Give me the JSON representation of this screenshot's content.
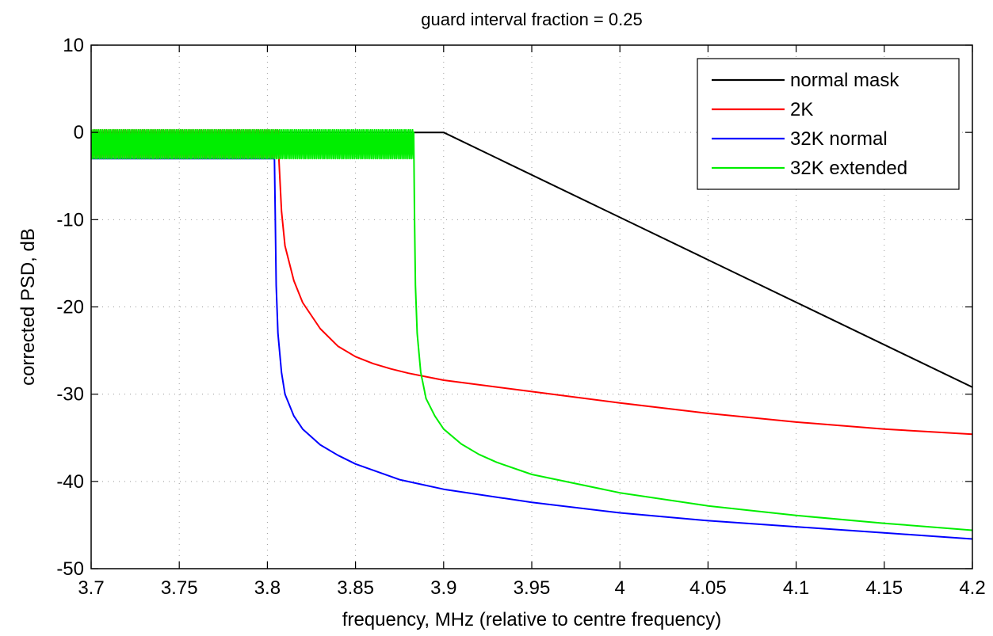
{
  "chart_data": {
    "type": "line",
    "title": "guard interval fraction = 0.25",
    "xlabel": "frequency, MHz (relative to centre frequency)",
    "ylabel": "corrected PSD, dB",
    "xlim": [
      3.7,
      4.2
    ],
    "ylim": [
      -50,
      10
    ],
    "xticks": [
      "3.7",
      "3.75",
      "3.8",
      "3.85",
      "3.9",
      "3.95",
      "4",
      "4.05",
      "4.1",
      "4.15",
      "4.2"
    ],
    "yticks": [
      "10",
      "0",
      "-10",
      "-20",
      "-30",
      "-40",
      "-50"
    ],
    "grid": "dotted",
    "legend_position": "top-right",
    "series": [
      {
        "name": "normal mask",
        "color": "#000000",
        "x": [
          3.7,
          3.9,
          4.2
        ],
        "y": [
          0,
          0,
          -29.2
        ],
        "ripple": null
      },
      {
        "name": "2K",
        "color": "#ff0000",
        "x": [
          3.7,
          3.806,
          3.8065,
          3.808,
          3.81,
          3.815,
          3.82,
          3.83,
          3.84,
          3.85,
          3.86,
          3.87,
          3.88,
          3.89,
          3.9,
          3.95,
          4.0,
          4.05,
          4.1,
          4.15,
          4.2
        ],
        "y": [
          0,
          0,
          -3,
          -9,
          -13,
          -17,
          -19.5,
          -22.5,
          -24.5,
          -25.7,
          -26.5,
          -27.1,
          -27.6,
          -28.0,
          -28.4,
          -29.7,
          -31.0,
          -32.2,
          -33.2,
          -34.0,
          -34.6
        ],
        "ripple": {
          "x_start": 3.7,
          "x_end": 3.806,
          "low": -3,
          "high": 0.3
        }
      },
      {
        "name": "32K normal",
        "color": "#0000ff",
        "x": [
          3.7,
          3.804,
          3.8045,
          3.805,
          3.806,
          3.808,
          3.81,
          3.815,
          3.82,
          3.83,
          3.84,
          3.85,
          3.875,
          3.9,
          3.95,
          4.0,
          4.05,
          4.1,
          4.15,
          4.2
        ],
        "y": [
          -3,
          -3,
          -10,
          -17.5,
          -23,
          -27.5,
          -30,
          -32.5,
          -34,
          -35.8,
          -37,
          -38,
          -39.8,
          -40.9,
          -42.4,
          -43.6,
          -44.5,
          -45.2,
          -45.9,
          -46.6
        ],
        "ripple": null
      },
      {
        "name": "32K extended",
        "color": "#00ee00",
        "x": [
          3.7,
          3.883,
          3.8835,
          3.884,
          3.885,
          3.887,
          3.89,
          3.895,
          3.9,
          3.91,
          3.92,
          3.93,
          3.95,
          4.0,
          4.05,
          4.1,
          4.15,
          4.2
        ],
        "y": [
          0,
          0,
          -10,
          -17.5,
          -23,
          -27.5,
          -30.5,
          -32.5,
          -34,
          -35.7,
          -36.9,
          -37.8,
          -39.2,
          -41.3,
          -42.8,
          -43.9,
          -44.8,
          -45.6
        ],
        "ripple": {
          "x_start": 3.7,
          "x_end": 3.883,
          "low": -3,
          "high": 0.3
        }
      }
    ]
  }
}
